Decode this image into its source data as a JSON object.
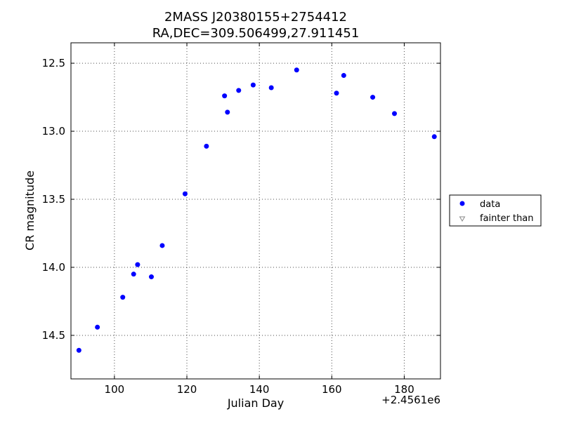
{
  "chart_data": {
    "type": "scatter",
    "title": [
      "2MASS J20380155+2754412",
      "RA,DEC=309.506499,27.911451"
    ],
    "xlabel": "Julian Day",
    "ylabel": "CR magnitude",
    "x_offset_label": "+2.4561e6",
    "xlim": [
      88,
      190
    ],
    "ylim": [
      14.82,
      12.35
    ],
    "y_inverted": true,
    "grid": true,
    "x_ticks": [
      100,
      120,
      140,
      160,
      180
    ],
    "y_ticks": [
      12.5,
      13.0,
      13.5,
      14.0,
      14.5
    ],
    "y_tick_labels": [
      "12.5",
      "13.0",
      "13.5",
      "14.0",
      "14.5"
    ],
    "legend_placement": "outside-right",
    "series": [
      {
        "name": "data",
        "marker": "circle",
        "color": "#0000ff",
        "x": [
          90.2,
          95.3,
          102.3,
          105.3,
          106.4,
          110.2,
          113.2,
          119.5,
          125.4,
          130.4,
          131.2,
          134.3,
          138.3,
          143.3,
          150.3,
          161.3,
          163.3,
          171.3,
          177.3,
          188.3
        ],
        "y": [
          14.61,
          14.44,
          14.22,
          14.05,
          13.98,
          14.07,
          13.84,
          13.46,
          13.11,
          12.74,
          12.86,
          12.7,
          12.66,
          12.68,
          12.55,
          12.72,
          12.59,
          12.75,
          12.87,
          13.04
        ]
      },
      {
        "name": "fainter than",
        "marker": "triangle-down",
        "color": "#888888",
        "x": [],
        "y": []
      }
    ]
  }
}
